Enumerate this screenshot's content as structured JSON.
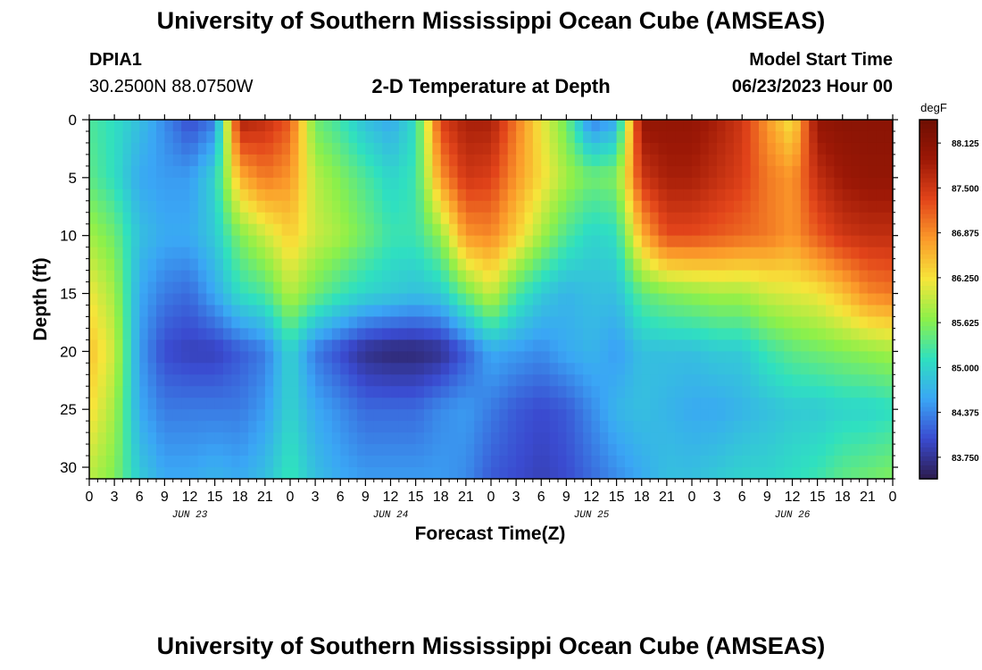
{
  "chart_data": {
    "type": "heatmap",
    "title": "University of Southern Mississippi Ocean Cube (AMSEAS)",
    "station_id": "DPIA1",
    "station_coords": "30.2500N  88.0750W",
    "subtitle": "2-D Temperature at Depth",
    "model_start_label": "Model Start Time",
    "model_start_value": "06/23/2023 Hour 00",
    "xlabel": "Forecast Time(Z)",
    "ylabel": "Depth (ft)",
    "x_range_hours": [
      0,
      96
    ],
    "ylim": [
      0,
      31
    ],
    "x_ticks": [
      {
        "h": 0,
        "label": "0"
      },
      {
        "h": 3,
        "label": "3"
      },
      {
        "h": 6,
        "label": "6"
      },
      {
        "h": 9,
        "label": "9"
      },
      {
        "h": 12,
        "label": "12"
      },
      {
        "h": 15,
        "label": "15"
      },
      {
        "h": 18,
        "label": "18"
      },
      {
        "h": 21,
        "label": "21"
      },
      {
        "h": 24,
        "label": "0"
      },
      {
        "h": 27,
        "label": "3"
      },
      {
        "h": 30,
        "label": "6"
      },
      {
        "h": 33,
        "label": "9"
      },
      {
        "h": 36,
        "label": "12"
      },
      {
        "h": 39,
        "label": "15"
      },
      {
        "h": 42,
        "label": "18"
      },
      {
        "h": 45,
        "label": "21"
      },
      {
        "h": 48,
        "label": "0"
      },
      {
        "h": 51,
        "label": "3"
      },
      {
        "h": 54,
        "label": "6"
      },
      {
        "h": 57,
        "label": "9"
      },
      {
        "h": 60,
        "label": "12"
      },
      {
        "h": 63,
        "label": "15"
      },
      {
        "h": 66,
        "label": "18"
      },
      {
        "h": 69,
        "label": "21"
      },
      {
        "h": 72,
        "label": "0"
      },
      {
        "h": 75,
        "label": "3"
      },
      {
        "h": 78,
        "label": "6"
      },
      {
        "h": 81,
        "label": "9"
      },
      {
        "h": 84,
        "label": "12"
      },
      {
        "h": 87,
        "label": "15"
      },
      {
        "h": 90,
        "label": "18"
      },
      {
        "h": 93,
        "label": "21"
      },
      {
        "h": 96,
        "label": "0"
      }
    ],
    "date_labels": [
      {
        "h": 12,
        "label": "JUN 23"
      },
      {
        "h": 36,
        "label": "JUN 24"
      },
      {
        "h": 60,
        "label": "JUN 25"
      },
      {
        "h": 84,
        "label": "JUN 26"
      }
    ],
    "y_ticks": [
      0,
      5,
      10,
      15,
      20,
      25,
      30
    ],
    "colorbar": {
      "unit": "degF",
      "range": [
        83.45,
        88.45
      ],
      "labels": [
        "88.125",
        "87.500",
        "86.875",
        "86.250",
        "85.625",
        "85.000",
        "84.375",
        "83.750"
      ],
      "colors": [
        "#2c1b4d",
        "#3a4bd0",
        "#3aa6f5",
        "#2fe0c0",
        "#8cf04a",
        "#f6e53a",
        "#fb9a2a",
        "#e2441a",
        "#9c1806",
        "#6e0e02"
      ]
    },
    "temperature_field_degF": {
      "depths_ft": [
        0,
        5,
        10,
        15,
        20,
        25,
        31
      ],
      "hours": [
        0,
        3,
        6,
        9,
        12,
        15,
        18,
        21,
        24,
        27,
        30,
        33,
        36,
        39,
        42,
        45,
        48,
        51,
        54,
        57,
        60,
        63,
        66,
        69,
        72,
        75,
        78,
        81,
        84,
        87,
        90,
        93,
        96
      ],
      "values": [
        [
          85.3,
          85.1,
          84.8,
          84.4,
          84.0,
          84.3,
          87.8,
          87.6,
          87.2,
          85.5,
          85.2,
          84.8,
          84.6,
          85.1,
          87.4,
          87.8,
          87.8,
          87.0,
          86.2,
          85.5,
          84.3,
          84.6,
          88.0,
          88.0,
          88.0,
          87.8,
          87.5,
          86.8,
          86.2,
          88.0,
          88.1,
          88.1,
          88.1
        ],
        [
          85.4,
          85.1,
          84.6,
          84.5,
          84.5,
          85.0,
          86.6,
          87.0,
          86.8,
          85.9,
          85.6,
          85.3,
          85.0,
          85.2,
          86.8,
          87.5,
          87.4,
          86.8,
          86.3,
          85.8,
          85.5,
          85.6,
          87.5,
          87.8,
          87.8,
          87.6,
          87.4,
          87.0,
          86.8,
          87.6,
          87.9,
          88.0,
          88.0
        ],
        [
          85.8,
          85.5,
          84.8,
          84.6,
          84.6,
          84.9,
          85.6,
          86.0,
          86.4,
          86.0,
          85.8,
          85.5,
          85.2,
          85.2,
          85.7,
          86.8,
          86.9,
          86.4,
          85.8,
          85.3,
          85.0,
          85.1,
          86.6,
          87.3,
          87.3,
          87.2,
          87.1,
          87.0,
          86.8,
          87.2,
          87.5,
          87.6,
          87.6
        ],
        [
          86.2,
          85.8,
          84.6,
          84.3,
          84.2,
          84.6,
          85.1,
          85.3,
          85.9,
          85.5,
          85.2,
          85.0,
          84.9,
          84.8,
          84.9,
          85.5,
          86.0,
          85.3,
          84.9,
          84.7,
          84.8,
          84.8,
          85.4,
          85.6,
          85.7,
          85.8,
          85.8,
          86.0,
          86.1,
          86.2,
          86.5,
          86.9,
          87.0
        ],
        [
          86.5,
          86.0,
          84.5,
          84.0,
          83.9,
          83.9,
          84.1,
          84.3,
          85.0,
          84.3,
          84.0,
          83.7,
          83.6,
          83.6,
          83.7,
          84.1,
          84.6,
          84.5,
          84.4,
          84.6,
          84.7,
          84.5,
          84.8,
          84.8,
          84.8,
          84.9,
          84.9,
          85.2,
          85.4,
          85.5,
          85.6,
          85.7,
          85.8
        ],
        [
          86.3,
          85.8,
          84.6,
          84.3,
          84.3,
          84.3,
          84.3,
          84.5,
          85.0,
          84.6,
          84.4,
          84.2,
          84.2,
          84.2,
          84.4,
          84.5,
          84.3,
          84.1,
          84.0,
          84.1,
          84.4,
          84.7,
          84.8,
          84.7,
          84.6,
          84.6,
          84.7,
          84.8,
          84.9,
          84.9,
          85.0,
          85.0,
          85.1
        ],
        [
          85.9,
          85.6,
          84.9,
          84.6,
          84.6,
          84.7,
          84.6,
          84.8,
          85.2,
          84.8,
          84.6,
          84.5,
          84.5,
          84.5,
          84.5,
          84.4,
          84.1,
          84.0,
          83.9,
          84.0,
          84.2,
          84.4,
          84.6,
          84.8,
          84.8,
          84.9,
          85.0,
          85.0,
          85.1,
          85.2,
          85.4,
          85.5,
          85.6
        ]
      ]
    }
  }
}
